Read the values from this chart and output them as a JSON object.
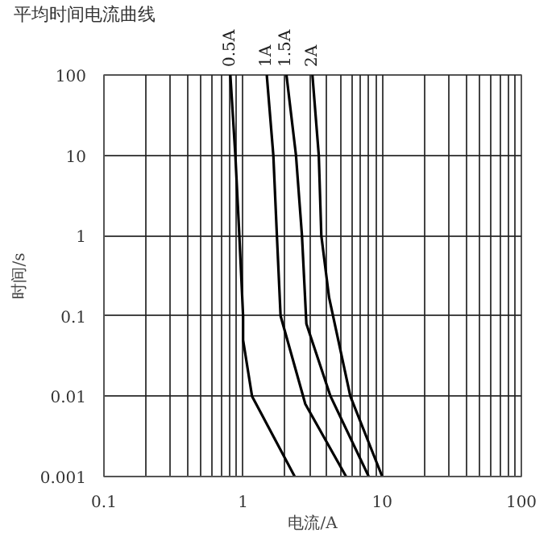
{
  "chart_data": {
    "type": "line",
    "title": "平均时间电流曲线",
    "xlabel": "电流/A",
    "ylabel": "时间/s",
    "log": "xy",
    "xlim": [
      0.1,
      100
    ],
    "ylim": [
      0.001,
      100
    ],
    "xticks": [
      0.1,
      {
        "value": 0.2,
        "label": null
      },
      {
        "value": 0.3,
        "label": null
      },
      {
        "value": 0.4,
        "label": null
      },
      {
        "value": 0.5,
        "label": null
      },
      {
        "value": 0.6,
        "label": null
      },
      {
        "value": 0.7,
        "label": null
      },
      {
        "value": 0.8,
        "label": null
      },
      {
        "value": 0.9,
        "label": null
      },
      1,
      {
        "value": 2,
        "label": null
      },
      {
        "value": 3,
        "label": null
      },
      {
        "value": 4,
        "label": null
      },
      {
        "value": 5,
        "label": null
      },
      {
        "value": 6,
        "label": null
      },
      {
        "value": 7,
        "label": null
      },
      {
        "value": 8,
        "label": null
      },
      {
        "value": 9,
        "label": null
      },
      10,
      {
        "value": 20,
        "label": null
      },
      {
        "value": 30,
        "label": null
      },
      {
        "value": 40,
        "label": null
      },
      {
        "value": 50,
        "label": null
      },
      {
        "value": 60,
        "label": null
      },
      {
        "value": 70,
        "label": null
      },
      {
        "value": 80,
        "label": null
      },
      {
        "value": 90,
        "label": null
      },
      100
    ],
    "yticks": [
      0.001,
      0.01,
      0.1,
      1,
      10,
      100
    ],
    "grid": true,
    "marker": "none",
    "line_style": "solid",
    "series": [
      {
        "name": "0.5A",
        "color": "#000000",
        "x": [
          0.81,
          0.88,
          0.94,
          1.0,
          1.0,
          1.16,
          2.35
        ],
        "values": [
          100,
          10,
          1,
          0.1,
          0.05,
          0.01,
          0.001
        ]
      },
      {
        "name": "1A",
        "color": "#000000",
        "x": [
          1.48,
          1.65,
          1.75,
          1.86,
          2.8,
          5.5
        ],
        "values": [
          100,
          10,
          1,
          0.1,
          0.008,
          0.001
        ]
      },
      {
        "name": "1.5A",
        "color": "#000000",
        "x": [
          2.05,
          2.4,
          2.65,
          2.85,
          4.25,
          8
        ],
        "values": [
          100,
          10,
          1,
          0.08,
          0.01,
          0.001
        ]
      },
      {
        "name": "2A",
        "color": "#000000",
        "x": [
          3.15,
          3.5,
          3.65,
          4.15,
          5.9,
          10
        ],
        "values": [
          100,
          10,
          1,
          0.17,
          0.01,
          0.001
        ]
      }
    ]
  }
}
